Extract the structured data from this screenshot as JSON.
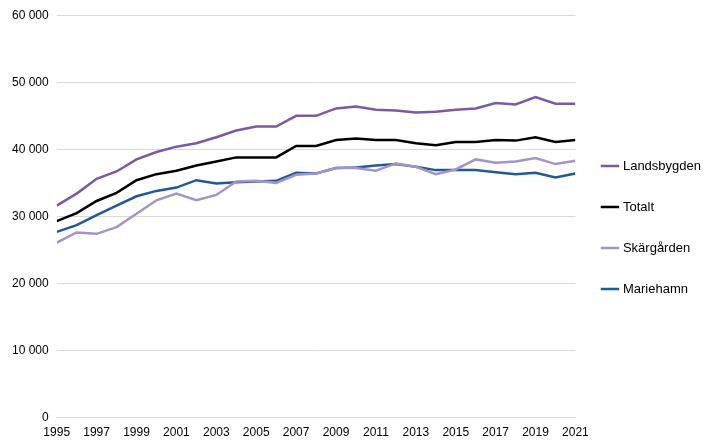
{
  "chart_data": {
    "type": "line",
    "categories": [
      "1995",
      null,
      "1997",
      null,
      "1999",
      null,
      "2001",
      null,
      "2003",
      null,
      "2005",
      null,
      "2007",
      null,
      "2009",
      null,
      "2011",
      null,
      "2013",
      null,
      "2015",
      null,
      "2017",
      null,
      "2019",
      null,
      "2021"
    ],
    "series": [
      {
        "name": "Landsbygden",
        "color": "#7a5aa6",
        "values": [
          31600,
          33400,
          35600,
          36700,
          38500,
          39600,
          40400,
          40900,
          41800,
          42800,
          43400,
          43400,
          45000,
          45000,
          46100,
          46400,
          45900,
          45800,
          45500,
          45600,
          45900,
          46100,
          46900,
          46700,
          47800,
          46800,
          46800
        ]
      },
      {
        "name": "Totalt",
        "color": "#000000",
        "values": [
          29300,
          30500,
          32300,
          33500,
          35400,
          36300,
          36800,
          37600,
          38200,
          38800,
          38800,
          38800,
          40500,
          40500,
          41400,
          41600,
          41400,
          41400,
          40900,
          40600,
          41100,
          41100,
          41400,
          41300,
          41800,
          41100,
          41400
        ]
      },
      {
        "name": "Skärgården",
        "color": "#a394c9",
        "values": [
          26100,
          27600,
          27400,
          28400,
          30400,
          32400,
          33400,
          32400,
          33200,
          35200,
          35300,
          35000,
          36200,
          36400,
          37200,
          37200,
          36800,
          37900,
          37400,
          36300,
          37000,
          38500,
          38000,
          38200,
          38700,
          37800,
          38300
        ]
      },
      {
        "name": "Mariehamn",
        "color": "#1f5a96",
        "values": [
          27700,
          28700,
          30200,
          31600,
          33000,
          33800,
          34300,
          35400,
          34900,
          35100,
          35200,
          35300,
          36500,
          36400,
          37200,
          37300,
          37600,
          37800,
          37400,
          36900,
          36900,
          36900,
          36600,
          36300,
          36500,
          35800,
          36400
        ]
      }
    ],
    "ylim": [
      0,
      60000
    ],
    "yticks": [
      {
        "value": 0,
        "label": "0"
      },
      {
        "value": 10000,
        "label": "10 000"
      },
      {
        "value": 20000,
        "label": "20 000"
      },
      {
        "value": 30000,
        "label": "30 000"
      },
      {
        "value": 40000,
        "label": "40 000"
      },
      {
        "value": 50000,
        "label": "50 000"
      },
      {
        "value": 60000,
        "label": "60 000"
      }
    ],
    "grid": true,
    "legend": "right"
  }
}
